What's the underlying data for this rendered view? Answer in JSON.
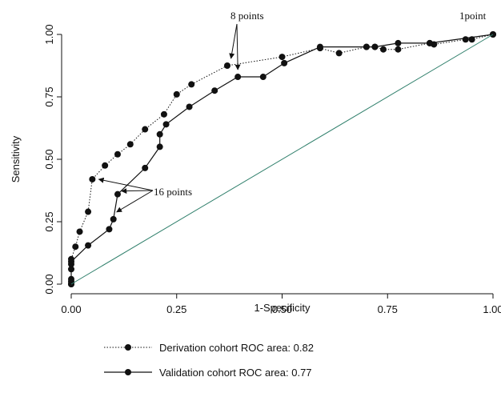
{
  "chart_data": {
    "type": "line",
    "xlabel": "1-Specificity",
    "ylabel": "Sensitivity",
    "xlim": [
      0,
      1
    ],
    "ylim": [
      0,
      1
    ],
    "xticks": [
      "0.00",
      "0.25",
      "0.50",
      "0.75",
      "1.00"
    ],
    "yticks": [
      "0.00",
      "0.25",
      "0.50",
      "0.75",
      "1.00"
    ],
    "grid": false,
    "legend_position": "bottom",
    "series": [
      {
        "name": "Derivation cohort ROC area: 0.82",
        "style": "dotted",
        "x": [
          0,
          0,
          0,
          0,
          0.01,
          0.02,
          0.04,
          0.05,
          0.08,
          0.11,
          0.14,
          0.175,
          0.22,
          0.25,
          0.285,
          0.37,
          0.5,
          0.59,
          0.635,
          0.7,
          0.72,
          0.74,
          0.775,
          0.85,
          0.86,
          0.935,
          0.95,
          1.0
        ],
        "y": [
          0.0,
          0.02,
          0.06,
          0.1,
          0.15,
          0.21,
          0.29,
          0.42,
          0.475,
          0.52,
          0.56,
          0.62,
          0.68,
          0.76,
          0.8,
          0.875,
          0.91,
          0.945,
          0.925,
          0.95,
          0.95,
          0.94,
          0.94,
          0.965,
          0.96,
          0.98,
          0.98,
          1.0
        ]
      },
      {
        "name": "Validation cohort ROC area: 0.77",
        "style": "solid",
        "x": [
          0,
          0,
          0,
          0,
          0.04,
          0.09,
          0.1,
          0.11,
          0.175,
          0.21,
          0.21,
          0.225,
          0.28,
          0.34,
          0.395,
          0.455,
          0.505,
          0.59,
          0.7,
          0.72,
          0.775,
          0.85,
          1.0
        ],
        "y": [
          0.0,
          0.01,
          0.08,
          0.09,
          0.155,
          0.22,
          0.26,
          0.36,
          0.465,
          0.55,
          0.6,
          0.64,
          0.71,
          0.775,
          0.83,
          0.83,
          0.885,
          0.95,
          0.95,
          0.95,
          0.965,
          0.965,
          1.0
        ]
      },
      {
        "name": "",
        "style": "reference",
        "x": [
          0,
          1
        ],
        "y": [
          0,
          1
        ]
      }
    ],
    "annotations": [
      {
        "text": "8 points"
      },
      {
        "text": "1point"
      },
      {
        "text": "16 points"
      }
    ]
  }
}
